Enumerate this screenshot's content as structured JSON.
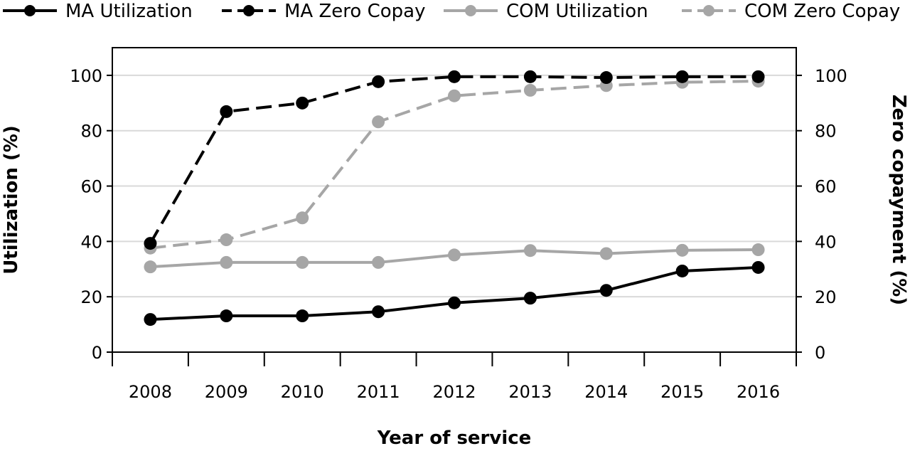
{
  "chart_data": {
    "type": "line",
    "xlabel": "Year of service",
    "ylabel_left": "Utilization (%)",
    "ylabel_right": "Zero copayment (%)",
    "ylim": [
      0,
      110
    ],
    "yticks": [
      0,
      20,
      40,
      60,
      80,
      100
    ],
    "grid": true,
    "legend_position": "top",
    "categories": [
      "2008",
      "2009",
      "2010",
      "2011",
      "2012",
      "2013",
      "2014",
      "2015",
      "2016"
    ],
    "series": [
      {
        "name": "MA Utilization",
        "color": "#000000",
        "dashed": false,
        "axis": "left",
        "values": [
          11.8,
          13.1,
          13.1,
          14.6,
          17.8,
          19.5,
          22.3,
          29.3,
          30.6
        ]
      },
      {
        "name": "MA Zero Copay",
        "color": "#000000",
        "dashed": true,
        "axis": "right",
        "values": [
          39.3,
          86.9,
          90.0,
          97.7,
          99.5,
          99.5,
          99.2,
          99.5,
          99.5
        ]
      },
      {
        "name": "COM Utilization",
        "color": "#a6a6a6",
        "dashed": false,
        "axis": "left",
        "values": [
          30.8,
          32.4,
          32.4,
          32.4,
          35.1,
          36.7,
          35.6,
          36.8,
          37.0
        ]
      },
      {
        "name": "COM Zero Copay",
        "color": "#a6a6a6",
        "dashed": true,
        "axis": "right",
        "values": [
          37.6,
          40.6,
          48.5,
          83.2,
          92.6,
          94.6,
          96.3,
          97.5,
          97.9
        ]
      }
    ]
  }
}
